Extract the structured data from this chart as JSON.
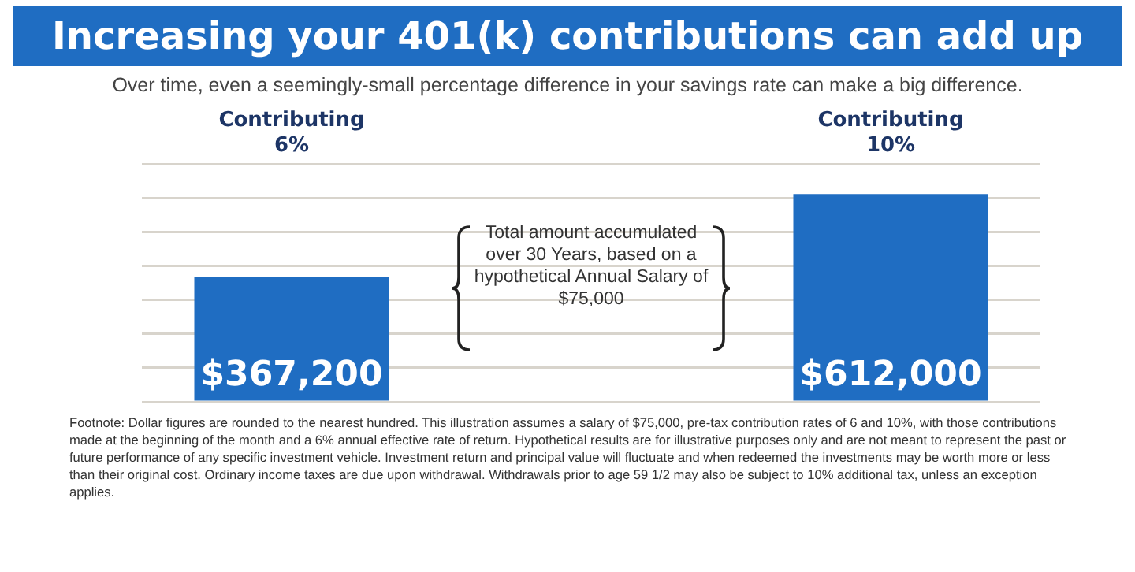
{
  "chart_data": {
    "type": "bar",
    "title": "Increasing your 401(k) contributions can add up",
    "subtitle": "Over time, even a seemingly-small percentage difference in your savings rate can make a big difference.",
    "categories": [
      "Contributing 6%",
      null,
      "Contributing 10%"
    ],
    "values": [
      367200,
      null,
      612000
    ],
    "value_labels": [
      "$367,200",
      null,
      "$612,000"
    ],
    "color": "#1f6dc2",
    "grid": "y",
    "legend": false,
    "annotations": [
      "Total amount accumulated over 30 Years, based on a hypothetical Annual Salary of $75,000",
      "Footnote: Dollar figures are rounded to the nearest hundred. This illustration assumes a salary of $75,000, pre-tax contribution rates of 6 and 10%, with those contributions made at the beginning of the month and a 6% annual effective rate of return. Hypothetical results are for illustrative purposes only and are not meant to represent the past or future performance of any specific investment vehicle. Investment return and principal value will fluctuate and when redeemed the investments may be worth more or less than their original cost. Ordinary income taxes are due upon withdrawal. Withdrawals prior to age 59 1/2 may also be subject to 10% additional tax, unless an exception applies."
    ]
  }
}
